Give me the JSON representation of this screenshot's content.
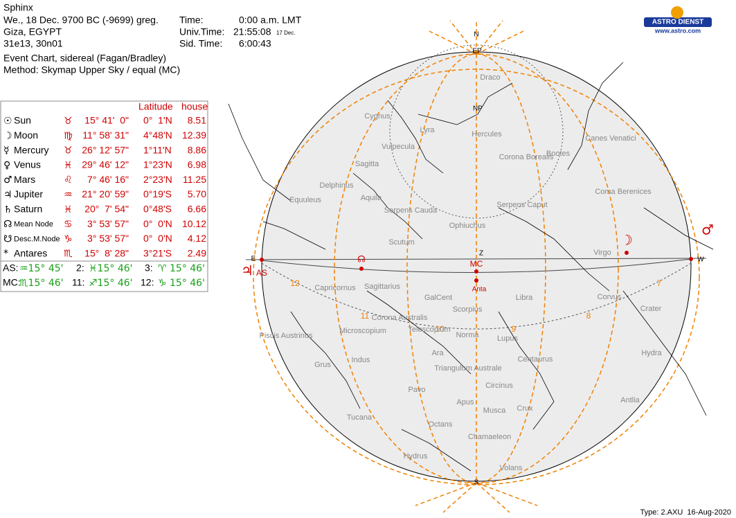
{
  "header": {
    "title": "Sphinx",
    "date": "We., 18 Dec. 9700 BC (-9699) greg.",
    "place": "Giza, EGYPT",
    "coords": "31e13, 30n01",
    "chart_type": "Event Chart, sidereal (Fagan/Bradley)",
    "method": "Method: Skymap Upper Sky / equal (MC)",
    "time_label": "Time:",
    "time": "0:00 a.m. LMT",
    "ut_label": "Univ.Time:",
    "ut": "21:55:08",
    "ut_note": "17 Dec.",
    "st_label": "Sid. Time:",
    "st": "6:00:43"
  },
  "logo": {
    "name": "ASTRO DIENST",
    "url": "www.astro.com"
  },
  "table": {
    "headers": [
      "Latitude",
      "house"
    ],
    "rows": [
      {
        "symbol": "☉",
        "name": "Sun",
        "sign": "♉",
        "position": "15° 41'  0\"",
        "latitude": "0°  1'N",
        "house": "8.51"
      },
      {
        "symbol": "☽",
        "name": "Moon",
        "sign": "♍",
        "position": "11° 58' 31\"",
        "latitude": "4°48'N",
        "house": "12.39"
      },
      {
        "symbol": "☿",
        "name": "Mercury",
        "sign": "♉",
        "position": "26° 12' 57\"",
        "latitude": "1°11'N",
        "house": "8.86"
      },
      {
        "symbol": "♀",
        "name": "Venus",
        "sign": "♓",
        "position": "29° 46' 12\"",
        "latitude": "1°23'N",
        "house": "6.98"
      },
      {
        "symbol": "♂",
        "name": "Mars",
        "sign": "♌",
        "position": "7° 46' 16\"",
        "latitude": "2°23'N",
        "house": "11.25"
      },
      {
        "symbol": "♃",
        "name": "Jupiter",
        "sign": "♒",
        "position": "21° 20' 59\"",
        "latitude": "0°19'S",
        "house": "5.70"
      },
      {
        "symbol": "♄",
        "name": "Saturn",
        "sign": "♓",
        "position": "20°  7' 54\"",
        "latitude": "0°48'S",
        "house": "6.66"
      },
      {
        "symbol": "☊",
        "name": "Mean Node",
        "sign": "♋",
        "position": "3° 53' 57\"",
        "latitude": "0°  0'N",
        "house": "10.12"
      },
      {
        "symbol": "☋",
        "name": "Desc.M.Node",
        "sign": "♑",
        "position": "3° 53' 57\"",
        "latitude": "0°  0'N",
        "house": "4.12"
      },
      {
        "symbol": "*",
        "name": "Antares",
        "sign": "♏",
        "position": "15°  8' 28\"",
        "latitude": "3°21'S",
        "house": "2.49"
      }
    ],
    "houses": [
      [
        {
          "label": "AS:",
          "value": "♒15° 45'"
        },
        {
          "label": "2:",
          "value": "♓15° 46'"
        },
        {
          "label": "3:",
          "value": "♈ 15° 46'"
        }
      ],
      [
        {
          "label": "MC:",
          "value": "♏15° 46'"
        },
        {
          "label": "11:",
          "value": "♐15° 46'"
        },
        {
          "label": "12:",
          "value": "♑ 15° 46'"
        }
      ]
    ]
  },
  "sky": {
    "compass": [
      "N",
      "S",
      "E",
      "W",
      "Z",
      "NP",
      "EP"
    ],
    "markers": [
      "MC",
      "AS",
      "Anta"
    ],
    "planet_symbols": [
      "☽",
      "♂",
      "♃",
      "☊"
    ],
    "houses": [
      "12",
      "11",
      "10",
      "9",
      "8",
      "7"
    ],
    "constellations": [
      "Draco",
      "Cygnus",
      "Lyra",
      "Hercules",
      "Vulpecula",
      "Corona Borealis",
      "Bootes",
      "Canes Venatici",
      "Sagitta",
      "Delphinus",
      "Coma Berenices",
      "Equuleus",
      "Aquila",
      "Serpens Cauda",
      "Serpens Caput",
      "Ophiuchus",
      "Scutum",
      "Virgo",
      "Capricornus",
      "Sagittarius",
      "GalCent",
      "Libra",
      "Corvus",
      "Scorpius",
      "Crater",
      "Corona Australis",
      "Telescopium",
      "Norma",
      "Lupus",
      "Piscis Austrinus",
      "Microscopium",
      "Ara",
      "Hydra",
      "Grus",
      "Indus",
      "Centaurus",
      "Triangulum Australe",
      "Circinus",
      "Pavo",
      "Apus",
      "Antlia",
      "Tucana",
      "Musca",
      "Crux",
      "Octans",
      "Chamaeleon",
      "Hydrus",
      "Volans"
    ]
  },
  "footer": "Type: 2.AXU  16-Aug-2020"
}
